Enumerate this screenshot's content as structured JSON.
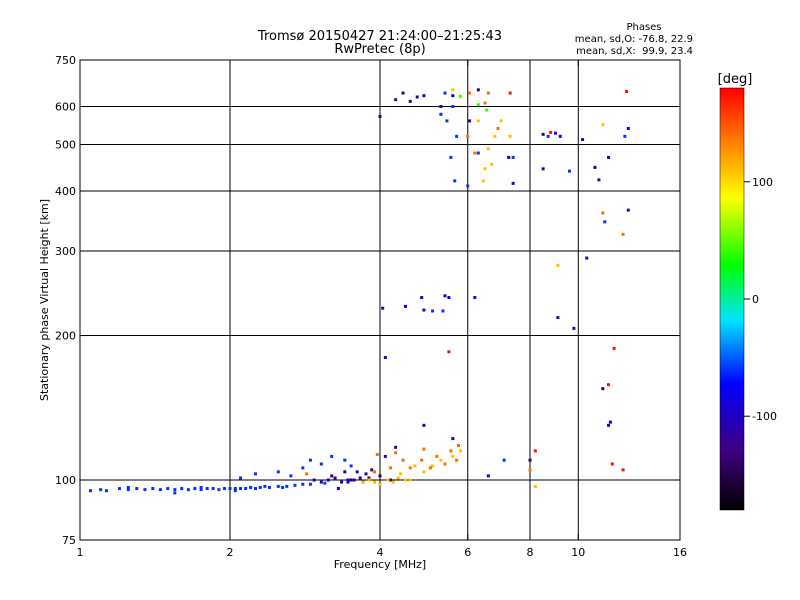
{
  "chart_data": {
    "type": "scatter",
    "title": "Tromsø 20150427 21:24:00–21:25:43",
    "subtitle": "RwPretec (8p)",
    "stats": {
      "heading": "Phases",
      "line1": "mean, sd,O: -76.8, 22.9",
      "line2": "mean, sd,X:  99.9, 23.4"
    },
    "xlabel": "Frequency [MHz]",
    "ylabel": "Stationary phase Virtual Height [km]",
    "x_scale": "log",
    "y_scale": "log",
    "xlim": [
      1,
      16
    ],
    "ylim": [
      75,
      750
    ],
    "grid": true,
    "x_ticks": [
      1,
      2,
      4,
      6,
      8,
      10,
      16
    ],
    "x_tick_labels": [
      "1",
      "2",
      "4",
      "6",
      "8",
      "10",
      "16"
    ],
    "x_gridlines": [
      2,
      4,
      6,
      8,
      10
    ],
    "y_ticks": [
      75,
      100,
      200,
      300,
      400,
      500,
      600,
      750
    ],
    "y_tick_labels": [
      "75",
      "100",
      "200",
      "300",
      "400",
      "500",
      "600",
      "750"
    ],
    "y_gridlines": [
      100,
      200,
      300,
      400,
      500,
      600
    ],
    "colorbar": {
      "label": "[deg]",
      "range": [
        -180,
        180
      ],
      "ticks": [
        100,
        0,
        -100
      ],
      "tick_labels": [
        "100",
        "0",
        "-100"
      ]
    },
    "series": [
      {
        "phase_deg": -60,
        "points": [
          [
            1.05,
            95
          ],
          [
            1.1,
            95.5
          ],
          [
            1.13,
            95
          ],
          [
            1.2,
            96
          ],
          [
            1.25,
            95.5
          ],
          [
            1.3,
            96
          ],
          [
            1.35,
            95.5
          ],
          [
            1.4,
            96
          ],
          [
            1.45,
            95.5
          ],
          [
            1.5,
            96
          ],
          [
            1.55,
            95.5
          ],
          [
            1.6,
            96
          ],
          [
            1.65,
            95.5
          ],
          [
            1.7,
            96
          ],
          [
            1.75,
            95.5
          ],
          [
            1.8,
            96
          ],
          [
            1.85,
            96
          ],
          [
            1.9,
            95.5
          ],
          [
            1.95,
            96
          ],
          [
            2.0,
            96
          ],
          [
            2.05,
            96
          ],
          [
            2.1,
            96
          ],
          [
            2.15,
            96
          ],
          [
            2.2,
            96.5
          ],
          [
            2.25,
            96
          ],
          [
            2.3,
            96.5
          ],
          [
            2.4,
            96.5
          ],
          [
            2.5,
            97
          ],
          [
            2.6,
            97
          ],
          [
            2.7,
            97.5
          ],
          [
            2.8,
            98
          ],
          [
            2.9,
            98
          ],
          [
            3.1,
            98.5
          ],
          [
            1.25,
            96.5
          ],
          [
            1.55,
            94
          ],
          [
            1.75,
            96.5
          ],
          [
            2.05,
            95
          ],
          [
            2.35,
            97
          ],
          [
            2.55,
            96.5
          ],
          [
            2.1,
            101
          ],
          [
            2.25,
            103
          ],
          [
            2.5,
            104
          ],
          [
            2.65,
            102
          ],
          [
            2.8,
            106
          ],
          [
            2.9,
            110
          ],
          [
            3.05,
            108
          ],
          [
            3.2,
            112
          ],
          [
            3.4,
            110
          ],
          [
            3.5,
            107
          ],
          [
            5.1,
            225
          ],
          [
            5.35,
            225
          ],
          [
            5.3,
            578
          ],
          [
            5.45,
            560
          ],
          [
            5.55,
            470
          ],
          [
            5.65,
            420
          ],
          [
            5.6,
            600
          ],
          [
            5.7,
            520
          ],
          [
            6.0,
            410
          ],
          [
            6.3,
            480
          ],
          [
            5.4,
            640
          ],
          [
            7.4,
            470
          ],
          [
            8.7,
            520
          ],
          [
            9.6,
            440
          ],
          [
            11.3,
            345
          ],
          [
            12.4,
            520
          ],
          [
            7.1,
            110
          ]
        ]
      },
      {
        "phase_deg": -110,
        "points": [
          [
            2.95,
            100
          ],
          [
            3.05,
            99
          ],
          [
            3.15,
            100
          ],
          [
            3.25,
            101
          ],
          [
            3.35,
            99
          ],
          [
            3.45,
            100
          ],
          [
            3.55,
            100
          ],
          [
            3.65,
            101
          ],
          [
            3.2,
            102
          ],
          [
            3.4,
            104
          ],
          [
            3.6,
            104
          ],
          [
            3.75,
            103
          ],
          [
            3.85,
            105
          ],
          [
            4.1,
            112
          ],
          [
            4.3,
            117
          ],
          [
            4.1,
            180
          ],
          [
            4.05,
            228
          ],
          [
            4.0,
            572
          ],
          [
            4.3,
            620
          ],
          [
            4.6,
            615
          ],
          [
            4.45,
            640
          ],
          [
            4.75,
            628
          ],
          [
            4.9,
            632
          ],
          [
            5.3,
            600
          ],
          [
            5.4,
            242
          ],
          [
            4.85,
            240
          ],
          [
            4.9,
            226
          ],
          [
            8.5,
            525
          ],
          [
            8.5,
            445
          ],
          [
            9.2,
            520
          ],
          [
            9.1,
            218
          ],
          [
            9.8,
            207
          ],
          [
            10.2,
            512
          ],
          [
            10.4,
            290
          ],
          [
            11.0,
            422
          ],
          [
            11.5,
            470
          ],
          [
            11.5,
            130
          ],
          [
            12.6,
            365
          ],
          [
            4.9,
            130
          ],
          [
            5.6,
            122
          ]
        ]
      },
      {
        "phase_deg": -140,
        "points": [
          [
            3.5,
            100
          ],
          [
            3.7,
            99
          ],
          [
            3.8,
            101
          ],
          [
            4.0,
            102
          ],
          [
            4.2,
            100
          ],
          [
            5.6,
            632
          ],
          [
            6.05,
            560
          ],
          [
            6.3,
            650
          ],
          [
            10.8,
            448
          ],
          [
            11.2,
            155
          ],
          [
            8.0,
            110
          ]
        ]
      },
      {
        "phase_deg": 110,
        "points": [
          [
            3.7,
            99
          ],
          [
            3.8,
            100
          ],
          [
            3.9,
            99
          ],
          [
            4.0,
            98
          ],
          [
            4.15,
            100
          ],
          [
            4.25,
            99
          ],
          [
            4.35,
            101
          ],
          [
            4.5,
            100
          ],
          [
            4.6,
            100
          ],
          [
            4.4,
            103
          ],
          [
            4.7,
            107
          ],
          [
            4.9,
            104
          ],
          [
            5.1,
            107
          ],
          [
            5.3,
            110
          ],
          [
            5.6,
            112
          ],
          [
            5.8,
            115
          ],
          [
            6.3,
            560
          ],
          [
            6.5,
            445
          ],
          [
            6.6,
            490
          ],
          [
            6.8,
            520
          ],
          [
            7.0,
            560
          ],
          [
            7.3,
            520
          ],
          [
            6.45,
            420
          ],
          [
            6.7,
            455
          ],
          [
            9.1,
            280
          ],
          [
            11.2,
            550
          ],
          [
            8.2,
            97
          ],
          [
            5.6,
            650
          ]
        ]
      },
      {
        "phase_deg": 140,
        "points": [
          [
            3.9,
            104
          ],
          [
            4.2,
            106
          ],
          [
            4.45,
            110
          ],
          [
            4.6,
            106
          ],
          [
            4.85,
            110
          ],
          [
            5.05,
            106
          ],
          [
            5.2,
            112
          ],
          [
            5.4,
            108
          ],
          [
            5.55,
            115
          ],
          [
            5.7,
            110
          ],
          [
            5.75,
            118
          ],
          [
            6.0,
            520
          ],
          [
            6.2,
            480
          ],
          [
            6.5,
            610
          ],
          [
            6.9,
            540
          ],
          [
            3.95,
            113
          ],
          [
            4.3,
            114
          ],
          [
            4.9,
            116
          ],
          [
            8.0,
            105
          ],
          [
            11.2,
            360
          ],
          [
            12.3,
            325
          ],
          [
            2.85,
            103
          ],
          [
            6.05,
            640
          ],
          [
            6.6,
            640
          ]
        ]
      },
      {
        "phase_deg": 175,
        "points": [
          [
            5.5,
            185
          ],
          [
            8.2,
            115
          ],
          [
            8.8,
            530
          ],
          [
            11.8,
            188
          ],
          [
            12.3,
            105
          ],
          [
            12.5,
            645
          ],
          [
            7.3,
            640
          ],
          [
            11.7,
            108
          ],
          [
            11.5,
            158
          ]
        ]
      },
      {
        "phase_deg": 40,
        "points": [
          [
            6.3,
            605
          ],
          [
            6.55,
            590
          ],
          [
            5.8,
            630
          ]
        ]
      },
      {
        "phase_deg": -85,
        "points": [
          [
            6.2,
            240
          ],
          [
            5.5,
            240
          ],
          [
            7.4,
            415
          ],
          [
            11.6,
            132
          ],
          [
            12.6,
            540
          ],
          [
            9.0,
            528
          ],
          [
            6.6,
            102
          ],
          [
            7.25,
            470
          ],
          [
            3.3,
            96
          ],
          [
            3.45,
            99
          ],
          [
            4.5,
            230
          ]
        ]
      }
    ]
  }
}
